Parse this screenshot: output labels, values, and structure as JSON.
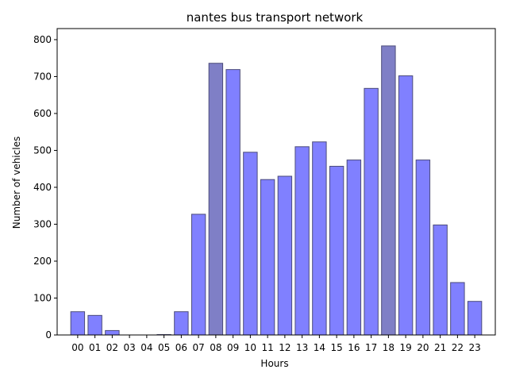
{
  "chart_data": {
    "type": "bar",
    "title": "nantes bus transport network",
    "xlabel": "Hours",
    "ylabel": "Number of vehicles",
    "categories": [
      "00",
      "01",
      "02",
      "03",
      "04",
      "05",
      "06",
      "07",
      "08",
      "09",
      "10",
      "11",
      "12",
      "13",
      "14",
      "15",
      "16",
      "17",
      "18",
      "19",
      "20",
      "21",
      "22",
      "23"
    ],
    "values": [
      63,
      53,
      12,
      0,
      0,
      1,
      63,
      327,
      736,
      719,
      495,
      421,
      430,
      510,
      523,
      457,
      474,
      668,
      783,
      702,
      474,
      298,
      142,
      91
    ],
    "highlighted_categories": [
      "08",
      "18"
    ],
    "ylim": [
      0,
      830
    ],
    "yticks": [
      0,
      100,
      200,
      300,
      400,
      500,
      600,
      700,
      800
    ],
    "grid": false,
    "colors": {
      "bar": "#8080ff",
      "bar_highlight": "#7f7fc6",
      "bar_edge": "#4c4c7a"
    }
  }
}
